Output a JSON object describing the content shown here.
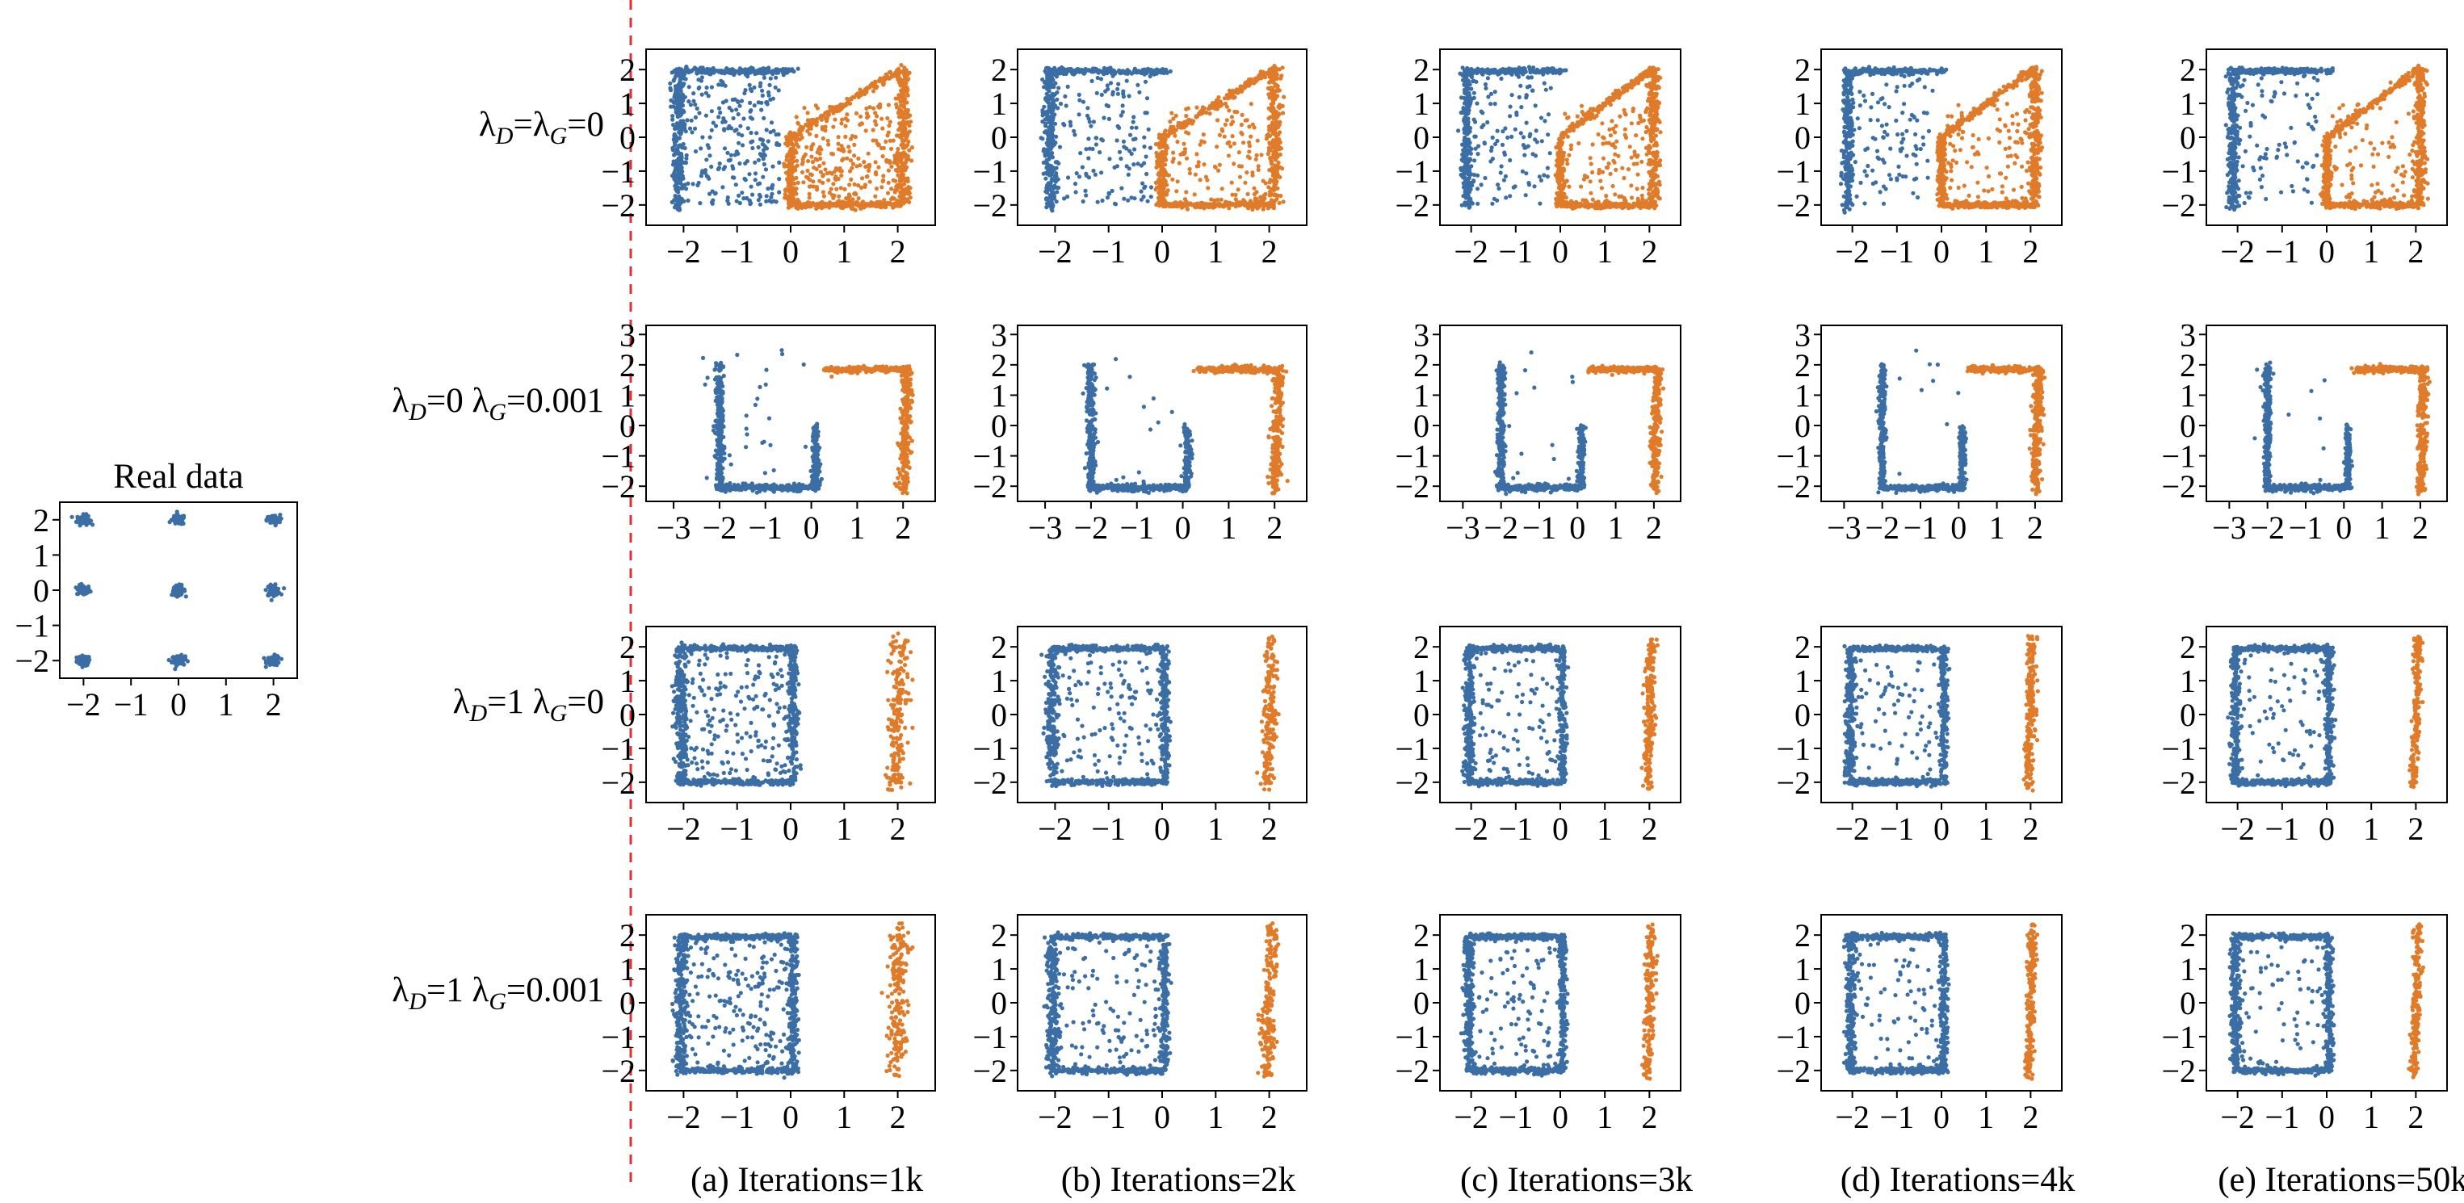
{
  "chart_data": {
    "type": "scatter",
    "colors": {
      "blue": "#3a6ea5",
      "orange": "#e07b2a",
      "divider": "#e03030"
    },
    "real": {
      "title": "Real data",
      "xticks": [
        "−2",
        "−1",
        "0",
        "1",
        "2"
      ],
      "yticks": [
        "2",
        "1",
        "0",
        "−1",
        "−2"
      ],
      "xlim": [
        -2.5,
        2.5
      ],
      "ylim": [
        -2.5,
        2.5
      ],
      "centers": [
        [
          -2,
          -2
        ],
        [
          -2,
          0
        ],
        [
          -2,
          2
        ],
        [
          0,
          -2
        ],
        [
          0,
          0
        ],
        [
          0,
          2
        ],
        [
          2,
          -2
        ],
        [
          2,
          0
        ],
        [
          2,
          2
        ]
      ]
    },
    "rows": [
      {
        "label": "λD=λG=0",
        "label_parts": [
          "λ",
          "D",
          "=λ",
          "G",
          "=0"
        ],
        "pattern": "A",
        "xticks": [
          "−2",
          "−1",
          "0",
          "1",
          "2"
        ],
        "yticks": [
          "2",
          "1",
          "0",
          "−1",
          "−2"
        ]
      },
      {
        "label": "λD=0 λG=0.001",
        "label_parts": [
          "λ",
          "D",
          "=0 λ",
          "G",
          "=0.001"
        ],
        "pattern": "B",
        "xticks": [
          "−3",
          "−2",
          "−1",
          "0",
          "1",
          "2"
        ],
        "yticks": [
          "3",
          "2",
          "1",
          "0",
          "−1",
          "−2"
        ]
      },
      {
        "label": "λD=1 λG=0",
        "label_parts": [
          "λ",
          "D",
          "=1 λ",
          "G",
          "=0"
        ],
        "pattern": "C",
        "xticks": [
          "−2",
          "−1",
          "0",
          "1",
          "2"
        ],
        "yticks": [
          "2",
          "1",
          "0",
          "−1",
          "−2"
        ]
      },
      {
        "label": "λD=1 λG=0.001",
        "label_parts": [
          "λ",
          "D",
          "=1 λ",
          "G",
          "=0.001"
        ],
        "pattern": "C",
        "xticks": [
          "−2",
          "−1",
          "0",
          "1",
          "2"
        ],
        "yticks": [
          "2",
          "1",
          "0",
          "−1",
          "−2"
        ]
      }
    ],
    "columns": [
      {
        "label": "(a) Iterations=1k",
        "noise": 1.0
      },
      {
        "label": "(b) Iterations=2k",
        "noise": 0.6
      },
      {
        "label": "(c) Iterations=3k",
        "noise": 0.5
      },
      {
        "label": "(d) Iterations=4k",
        "noise": 0.4
      },
      {
        "label": "(e) Iterations=50k",
        "noise": 0.35
      }
    ]
  }
}
